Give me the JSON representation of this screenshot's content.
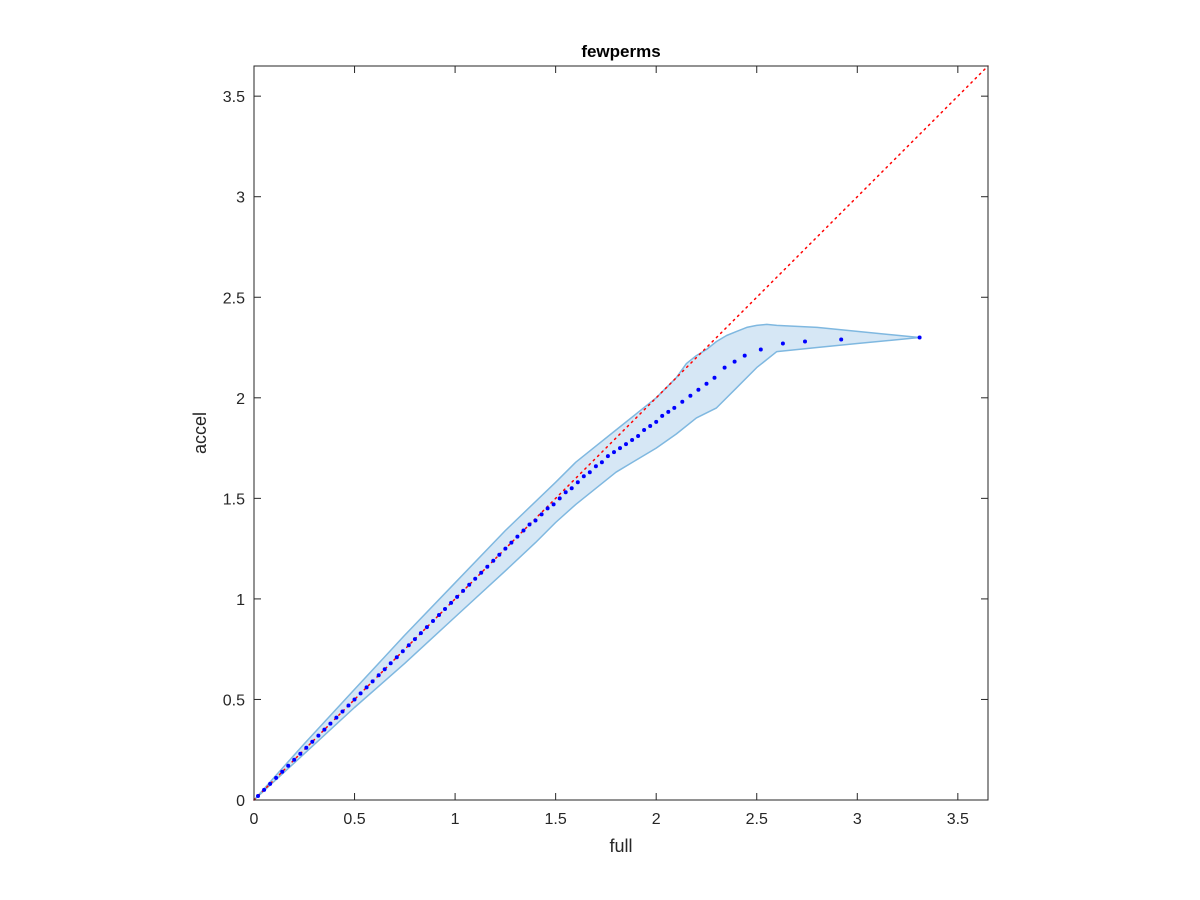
{
  "chart_data": {
    "type": "scatter",
    "title": "fewperms",
    "xlabel": "full",
    "ylabel": "accel",
    "xlim": [
      0,
      3.65
    ],
    "ylim": [
      0,
      3.65
    ],
    "xticks": [
      0,
      0.5,
      1,
      1.5,
      2,
      2.5,
      3,
      3.5
    ],
    "yticks": [
      0,
      0.5,
      1,
      1.5,
      2,
      2.5,
      3,
      3.5
    ],
    "xtick_labels": [
      "0",
      "0.5",
      "1",
      "1.5",
      "2",
      "2.5",
      "3",
      "3.5"
    ],
    "ytick_labels": [
      "0",
      "0.5",
      "1",
      "1.5",
      "2",
      "2.5",
      "3",
      "3.5"
    ],
    "grid": false,
    "box": true,
    "colors": {
      "points": "#0000ff",
      "reference_line": "#ff0000",
      "band_fill": "#d6e7f5",
      "band_edge": "#7fb8e0",
      "axes": "#262626"
    },
    "reference_line": {
      "style": "dotted",
      "x": [
        0,
        3.65
      ],
      "y": [
        0,
        3.65
      ]
    },
    "series": [
      {
        "values_x": [
          0.02,
          0.05,
          0.08,
          0.11,
          0.14,
          0.17,
          0.2,
          0.23,
          0.26,
          0.29,
          0.32,
          0.35,
          0.38,
          0.41,
          0.44,
          0.47,
          0.5,
          0.53,
          0.56,
          0.59,
          0.62,
          0.65,
          0.68,
          0.71,
          0.74,
          0.77,
          0.8,
          0.83,
          0.86,
          0.89,
          0.92,
          0.95,
          0.98,
          1.01,
          1.04,
          1.07,
          1.1,
          1.13,
          1.16,
          1.19,
          1.22,
          1.25,
          1.28,
          1.31,
          1.34,
          1.37,
          1.4,
          1.43,
          1.46,
          1.49,
          1.52,
          1.55,
          1.58,
          1.61,
          1.64,
          1.67,
          1.7,
          1.73,
          1.76,
          1.79,
          1.82,
          1.85,
          1.88,
          1.91,
          1.94,
          1.97,
          2.0,
          2.03,
          2.06,
          2.09,
          2.13,
          2.17,
          2.21,
          2.25,
          2.29,
          2.34,
          2.39,
          2.44,
          2.52,
          2.63,
          2.74,
          2.92,
          3.31
        ],
        "values_y": [
          0.02,
          0.05,
          0.08,
          0.11,
          0.14,
          0.17,
          0.2,
          0.23,
          0.26,
          0.29,
          0.32,
          0.35,
          0.38,
          0.41,
          0.44,
          0.47,
          0.5,
          0.53,
          0.56,
          0.59,
          0.62,
          0.65,
          0.68,
          0.71,
          0.74,
          0.77,
          0.8,
          0.83,
          0.86,
          0.89,
          0.92,
          0.95,
          0.98,
          1.01,
          1.04,
          1.07,
          1.1,
          1.13,
          1.16,
          1.19,
          1.22,
          1.25,
          1.28,
          1.31,
          1.34,
          1.37,
          1.39,
          1.42,
          1.45,
          1.47,
          1.5,
          1.53,
          1.55,
          1.58,
          1.61,
          1.63,
          1.66,
          1.68,
          1.71,
          1.73,
          1.75,
          1.77,
          1.79,
          1.81,
          1.84,
          1.86,
          1.88,
          1.91,
          1.93,
          1.95,
          1.98,
          2.01,
          2.04,
          2.07,
          2.1,
          2.15,
          2.18,
          2.21,
          2.24,
          2.27,
          2.28,
          2.29,
          2.3
        ]
      }
    ],
    "band": {
      "upper_x": [
        0,
        0.25,
        0.5,
        0.75,
        1.0,
        1.25,
        1.5,
        1.6,
        1.7,
        1.8,
        1.9,
        2.0,
        2.05,
        2.1,
        2.15,
        2.2,
        2.25,
        2.3,
        2.35,
        2.4,
        2.45,
        2.5,
        2.55,
        2.6,
        2.7,
        2.8,
        3.0,
        3.31
      ],
      "upper_y": [
        0,
        0.28,
        0.55,
        0.82,
        1.08,
        1.34,
        1.58,
        1.68,
        1.76,
        1.84,
        1.92,
        2.0,
        2.05,
        2.1,
        2.17,
        2.21,
        2.24,
        2.28,
        2.31,
        2.33,
        2.35,
        2.36,
        2.365,
        2.36,
        2.355,
        2.35,
        2.33,
        2.3
      ],
      "lower_x": [
        0,
        0.25,
        0.5,
        0.75,
        1.0,
        1.25,
        1.4,
        1.5,
        1.6,
        1.7,
        1.8,
        1.9,
        2.0,
        2.1,
        2.2,
        2.3,
        2.4,
        2.5,
        2.6,
        2.8,
        3.0,
        3.31
      ],
      "lower_y": [
        0,
        0.23,
        0.46,
        0.68,
        0.91,
        1.14,
        1.28,
        1.38,
        1.47,
        1.55,
        1.63,
        1.69,
        1.75,
        1.82,
        1.9,
        1.95,
        2.05,
        2.15,
        2.23,
        2.25,
        2.27,
        2.3
      ]
    }
  }
}
